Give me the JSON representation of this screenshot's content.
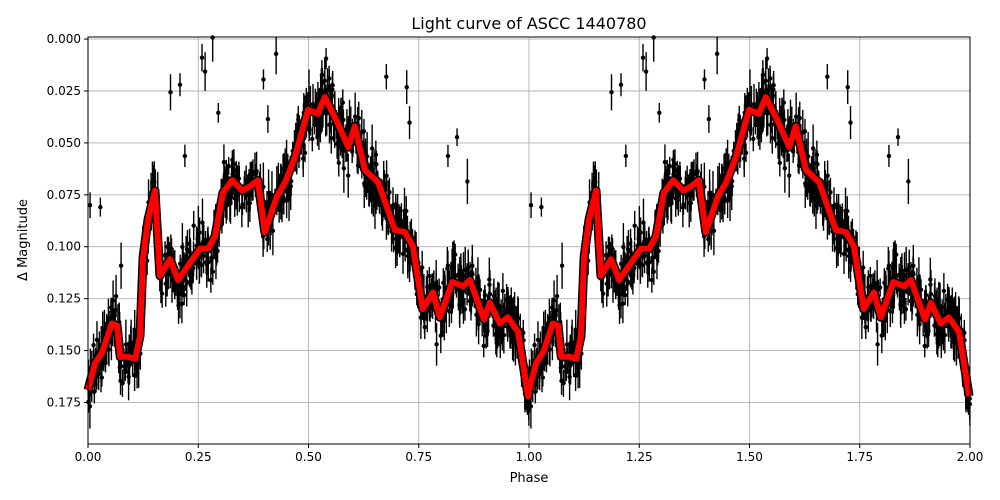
{
  "chart_data": {
    "type": "scatter",
    "title": "Light curve of ASCC 1440780",
    "xlabel": "Phase",
    "ylabel": "Δ Magnitude",
    "xlim": [
      0,
      2
    ],
    "ylim": [
      0.195,
      -0.001
    ],
    "y_inverted": true,
    "grid": true,
    "x_ticks": [
      "0.00",
      "0.25",
      "0.50",
      "0.75",
      "1.00",
      "1.25",
      "1.50",
      "1.75",
      "2.00"
    ],
    "y_ticks": [
      "0.000",
      "0.025",
      "0.050",
      "0.075",
      "0.100",
      "0.125",
      "0.150",
      "0.175"
    ],
    "colors": {
      "points": "#000000",
      "model": "#ff0000"
    },
    "model_curve": {
      "description_period_repeats": true,
      "phase": [
        0.0,
        0.016,
        0.032,
        0.054,
        0.066,
        0.073,
        0.091,
        0.107,
        0.118,
        0.125,
        0.136,
        0.152,
        0.163,
        0.186,
        0.204,
        0.254,
        0.272,
        0.288,
        0.306,
        0.327,
        0.35,
        0.367,
        0.385,
        0.401,
        0.428,
        0.447,
        0.469,
        0.499,
        0.521,
        0.537,
        0.565,
        0.59,
        0.605,
        0.628,
        0.658,
        0.696,
        0.719,
        0.737,
        0.759,
        0.782,
        0.798,
        0.826,
        0.85,
        0.866,
        0.898,
        0.911,
        0.934,
        0.952,
        0.975,
        0.998
      ],
      "magnitude": [
        0.169,
        0.156,
        0.151,
        0.137,
        0.138,
        0.153,
        0.153,
        0.154,
        0.143,
        0.105,
        0.087,
        0.073,
        0.114,
        0.106,
        0.116,
        0.101,
        0.101,
        0.095,
        0.074,
        0.068,
        0.073,
        0.071,
        0.068,
        0.093,
        0.076,
        0.069,
        0.057,
        0.034,
        0.036,
        0.028,
        0.04,
        0.052,
        0.042,
        0.063,
        0.069,
        0.092,
        0.093,
        0.1,
        0.13,
        0.122,
        0.134,
        0.117,
        0.119,
        0.116,
        0.135,
        0.127,
        0.137,
        0.134,
        0.141,
        0.172
      ]
    }
  }
}
